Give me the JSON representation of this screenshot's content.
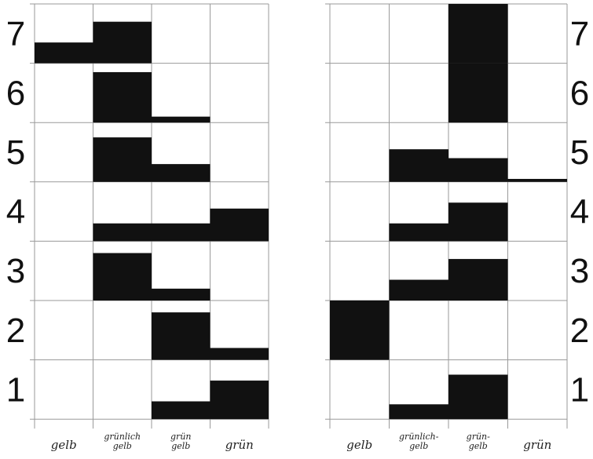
{
  "chart_data": [
    {
      "type": "bar",
      "panel": "left",
      "rows": [
        "1",
        "2",
        "3",
        "4",
        "5",
        "6",
        "7"
      ],
      "categories": [
        "gelb",
        "grünlich gelb",
        "grün gelb",
        "grün"
      ],
      "category_label_lines": [
        [
          "gelb"
        ],
        [
          "grünlich",
          "gelb"
        ],
        [
          "grün",
          "gelb"
        ],
        [
          "grün"
        ]
      ],
      "values": [
        [
          0,
          0,
          0.3,
          0.65
        ],
        [
          0,
          0,
          0.8,
          0.2
        ],
        [
          0,
          0.8,
          0.2,
          0
        ],
        [
          0,
          0.3,
          0.3,
          0.55
        ],
        [
          0,
          0.75,
          0.3,
          0
        ],
        [
          0,
          0.85,
          0.1,
          0
        ],
        [
          0.35,
          0.7,
          0,
          0
        ]
      ]
    },
    {
      "type": "bar",
      "panel": "right",
      "rows": [
        "1",
        "2",
        "3",
        "4",
        "5",
        "6",
        "7"
      ],
      "categories": [
        "gelb",
        "grünlich gelb",
        "grün gelb",
        "grün"
      ],
      "category_label_lines": [
        [
          "gelb"
        ],
        [
          "grünlich-",
          "gelb"
        ],
        [
          "grün-",
          "gelb"
        ],
        [
          "grün"
        ]
      ],
      "values": [
        [
          0,
          0.25,
          0.75,
          0
        ],
        [
          1.0,
          0,
          0,
          0
        ],
        [
          0,
          0.35,
          0.7,
          0
        ],
        [
          0,
          0.3,
          0.65,
          0
        ],
        [
          0,
          0.55,
          0.4,
          0.05
        ],
        [
          0,
          0,
          1.0,
          0
        ],
        [
          0,
          0,
          1.0,
          0
        ]
      ]
    }
  ]
}
